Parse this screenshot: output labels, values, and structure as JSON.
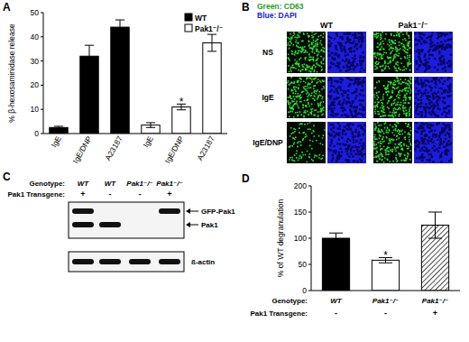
{
  "chart_data": [
    {
      "type": "bar",
      "title": "A",
      "y_label": "% β-hexosaminidase release",
      "categories": [
        "IgE",
        "IgE/DNP",
        "A23187",
        "IgE",
        "IgE/DNP",
        "A23187"
      ],
      "series": [
        {
          "name": "WT",
          "color": "#000000",
          "values": [
            2.5,
            32,
            44,
            null,
            null,
            null
          ],
          "errors": [
            0.5,
            4.5,
            3,
            null,
            null,
            null
          ],
          "annotations": [
            null,
            null,
            null,
            null,
            null,
            null
          ]
        },
        {
          "name": "Pak1⁻/⁻",
          "color": "#ffffff",
          "values": [
            null,
            null,
            null,
            3.5,
            11,
            37.5
          ],
          "errors": [
            null,
            null,
            null,
            1,
            1.2,
            3.5
          ],
          "annotations": [
            null,
            null,
            null,
            null,
            "*",
            null
          ]
        }
      ],
      "ylim": [
        0,
        50
      ],
      "yticks": [
        0,
        10,
        20,
        30,
        40,
        50
      ],
      "legend": "top-right"
    },
    {
      "type": "bar",
      "title": "D",
      "y_label": "% of WT degranulation",
      "row_labels": [
        "Genotype:",
        "Pak1 Transgene:"
      ],
      "categories": [
        "WT",
        "Pak1⁻/⁻",
        "Pak1⁻/⁻"
      ],
      "transgene": [
        "-",
        "-",
        "+"
      ],
      "values": [
        100,
        58,
        125
      ],
      "errors": [
        10,
        5,
        25
      ],
      "annotations": [
        null,
        "*",
        null
      ],
      "colors": [
        "#000000",
        "#ffffff",
        "#ffffff"
      ],
      "ylim": [
        0,
        200
      ],
      "yticks": [
        0,
        50,
        100,
        150,
        200
      ]
    }
  ],
  "panel_b": {
    "title": "B",
    "channels": [
      {
        "text": "Green: CD63",
        "color": "#1fa01f"
      },
      {
        "text": "Blue: DAPI",
        "color": "#2020d8"
      }
    ],
    "columns": [
      "WT",
      "Pak1⁻/⁻"
    ],
    "rows": [
      "NS",
      "IgE",
      "IgE/DNP"
    ]
  },
  "panel_c": {
    "title": "C",
    "row_labels": [
      "Genotype:",
      "Pak1 Transgene:"
    ],
    "genotype": [
      "WT",
      "WT",
      "Pak1⁻/⁻",
      "Pak1⁻/⁻"
    ],
    "transgene": [
      "+",
      "-",
      "-",
      "+"
    ],
    "bands": [
      {
        "label": "GFP-Pak1",
        "present": [
          1,
          0,
          0,
          1
        ]
      },
      {
        "label": "Pak1",
        "present": [
          1,
          1,
          0,
          0
        ]
      }
    ],
    "loading_control": {
      "label": "ß-actin",
      "present": [
        1,
        1,
        1,
        1
      ]
    }
  }
}
